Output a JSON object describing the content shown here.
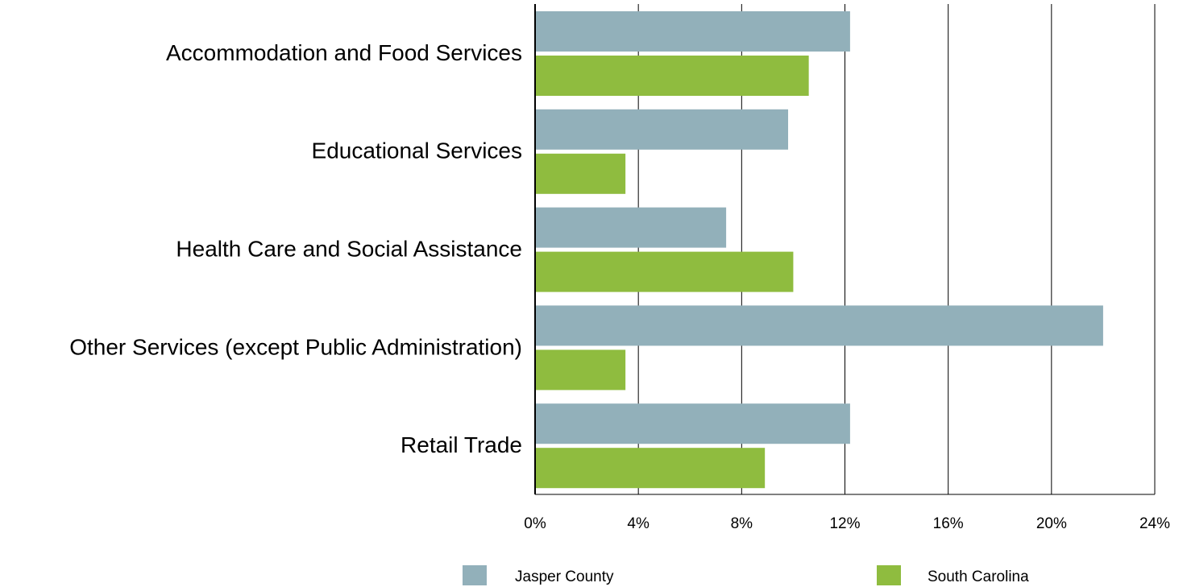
{
  "chart_data": {
    "type": "bar",
    "orientation": "horizontal",
    "categories": [
      "Accommodation and Food Services",
      "Educational Services",
      "Health Care and Social Assistance",
      "Other Services (except Public Administration)",
      "Retail Trade"
    ],
    "series": [
      {
        "name": "Jasper County",
        "color": "#92b0ba",
        "values": [
          12.2,
          9.8,
          7.4,
          22.0,
          12.2
        ]
      },
      {
        "name": "South Carolina",
        "color": "#8fbc3f",
        "values": [
          10.6,
          3.5,
          10.0,
          3.5,
          8.9
        ]
      }
    ],
    "xlim": [
      0,
      24
    ],
    "xticks": [
      0,
      4,
      8,
      12,
      16,
      20,
      24
    ],
    "tick_labels": [
      "0%",
      "4%",
      "8%",
      "12%",
      "16%",
      "20%",
      "24%"
    ],
    "grid": "vertical",
    "legend": "bottom",
    "title": "",
    "xlabel": "",
    "ylabel": ""
  }
}
